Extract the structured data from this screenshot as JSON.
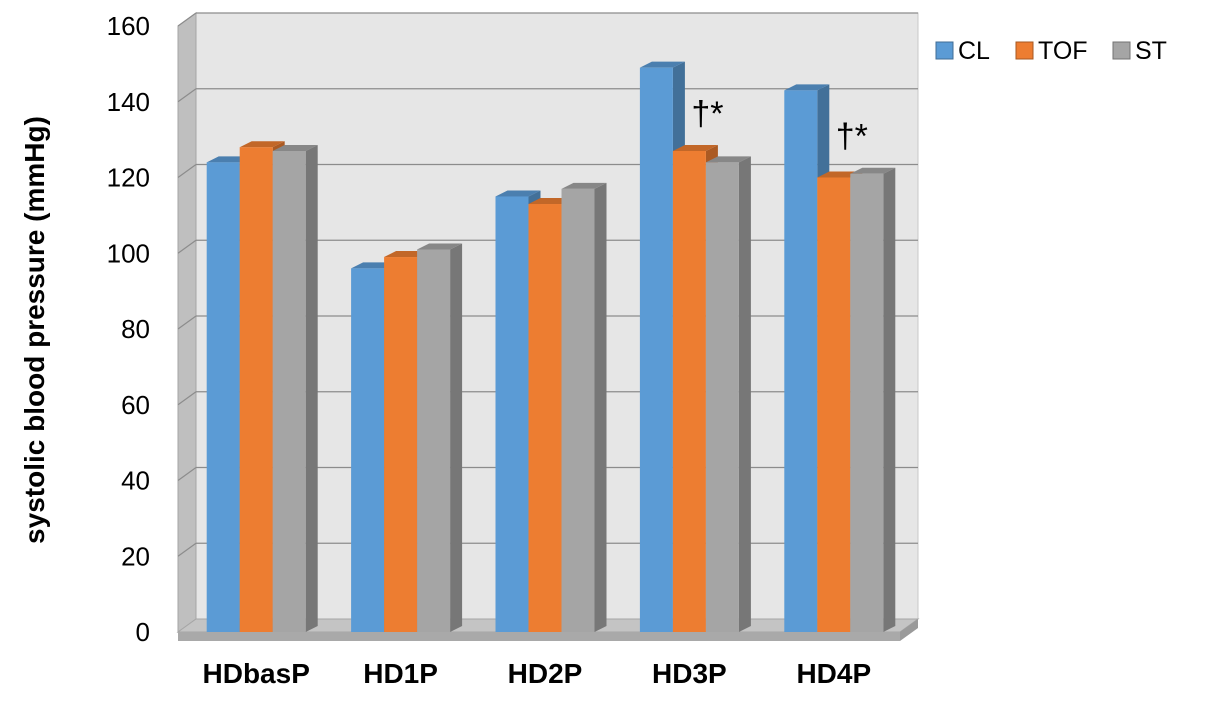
{
  "chart_data": {
    "type": "bar",
    "ylabel": "systolic blood pressure (mmHg)",
    "xlabel": "",
    "categories": [
      "HDbasP",
      "HD1P",
      "HD2P",
      "HD3P",
      "HD4P"
    ],
    "series": [
      {
        "name": "CL",
        "values": [
          124,
          96,
          115,
          149,
          143
        ],
        "color": "#5B9BD5"
      },
      {
        "name": "TOF",
        "values": [
          128,
          99,
          113,
          127,
          120
        ],
        "color": "#ED7D31"
      },
      {
        "name": "ST",
        "values": [
          127,
          101,
          117,
          124,
          121
        ],
        "color": "#A5A5A5"
      }
    ],
    "ylim": [
      0,
      160
    ],
    "yticks": [
      "0",
      "20",
      "40",
      "60",
      "80",
      "100",
      "120",
      "140",
      "160"
    ],
    "annotations": [
      {
        "category": "HD3P",
        "text": "†*"
      },
      {
        "category": "HD4P",
        "text": "†*"
      }
    ],
    "grid": true,
    "legend_position": "top-right",
    "style": "3d-clustered-column"
  }
}
